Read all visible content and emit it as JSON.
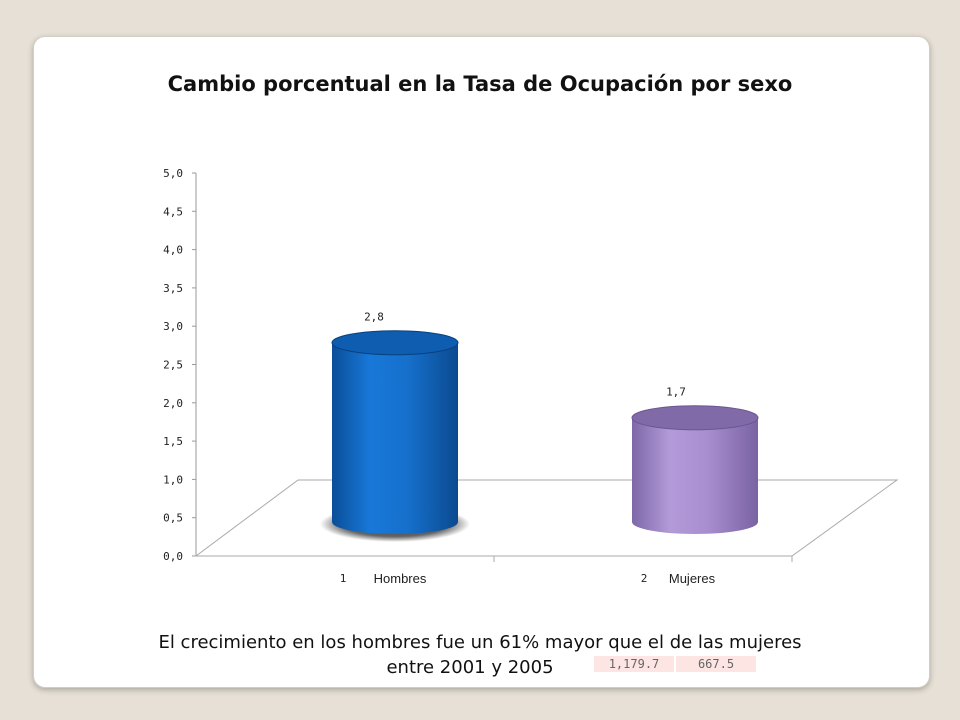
{
  "chart_data": {
    "type": "bar",
    "title": "Cambio porcentual en la Tasa de Ocupación por sexo",
    "categories": [
      "Hombres",
      "Mujeres"
    ],
    "category_numbers": [
      "1",
      "2"
    ],
    "values": [
      2.8,
      1.7
    ],
    "value_labels": [
      "2,8",
      "1,7"
    ],
    "ylim": [
      0,
      5
    ],
    "yticks": [
      "0,0",
      "0,5",
      "1,0",
      "1,5",
      "2,0",
      "2,5",
      "3,0",
      "3,5",
      "4,0",
      "4,5",
      "5,0"
    ],
    "colors": [
      "#1470c8",
      "#a58ccb"
    ],
    "grid": false,
    "style": "3d-cylinder"
  },
  "caption": {
    "line1": "El crecimiento en los hombres fue un 61% mayor que el de las mujeres",
    "line2": "entre 2001 y 2005"
  },
  "table_cells": [
    "1,179.7",
    "667.5"
  ],
  "colors": {
    "background": "#e6e0d6",
    "slide": "#ffffff"
  }
}
